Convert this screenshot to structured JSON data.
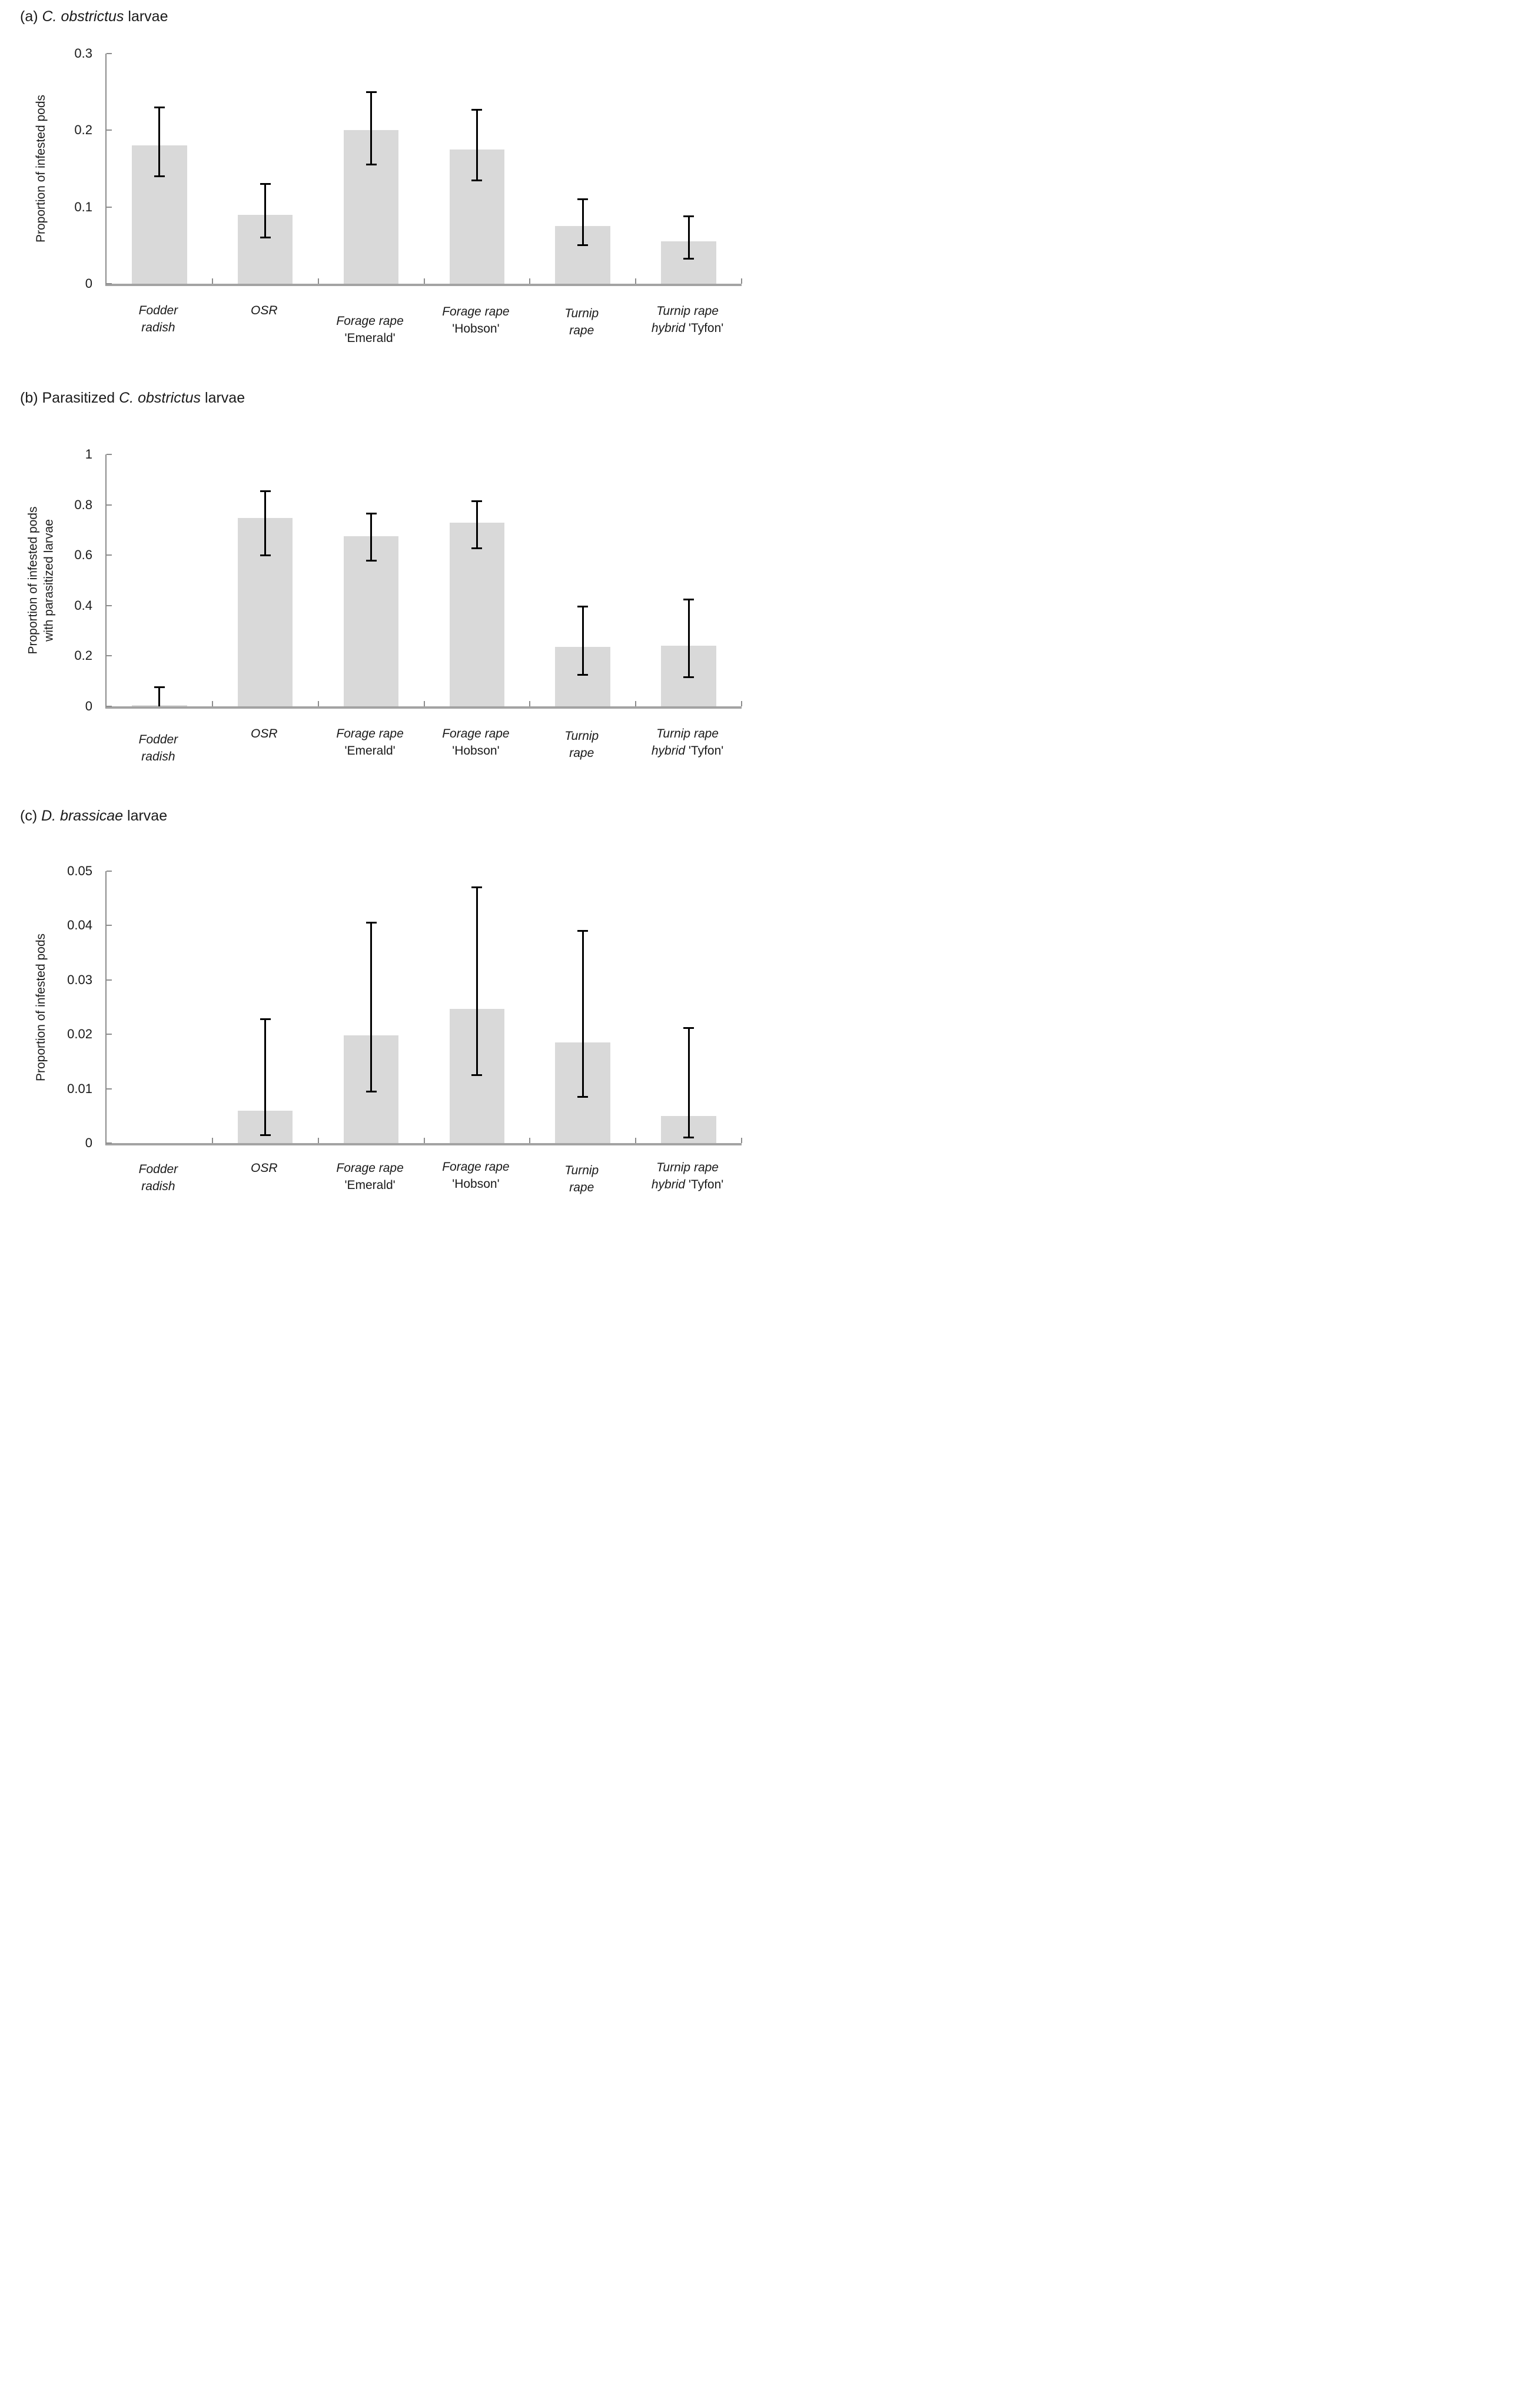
{
  "page": {
    "background": "#ffffff"
  },
  "colors": {
    "bar_fill": "#d9d9d9",
    "error_bar": "#000000",
    "axis_line": "#8c8c8c",
    "baseline": "#a3a3a3",
    "text": "#1a1a1a"
  },
  "chart_data": [
    {
      "type": "bar",
      "panel": "a",
      "title_parts": {
        "prefix": "(a) ",
        "italic": "C. obstrictus",
        "suffix": " larvae"
      },
      "ylabel_lines": [
        "Proportion of infested pods"
      ],
      "ylim": [
        0,
        0.3
      ],
      "grid": false,
      "legend": null,
      "yticks": [
        {
          "v": 0,
          "label": "0"
        },
        {
          "v": 0.1,
          "label": "0.1"
        },
        {
          "v": 0.2,
          "label": "0.2"
        },
        {
          "v": 0.3,
          "label": "0.3"
        }
      ],
      "categories": [
        {
          "lines": [
            [
              {
                "t": "Fodder",
                "i": true
              }
            ],
            [
              {
                "t": "radish",
                "i": true
              }
            ]
          ],
          "dy": 0
        },
        {
          "lines": [
            [
              {
                "t": "OSR",
                "i": true
              }
            ]
          ],
          "dy": 0
        },
        {
          "lines": [
            [
              {
                "t": "Forage rape",
                "i": true
              }
            ],
            [
              {
                "t": "'Emerald'",
                "i": false
              }
            ]
          ],
          "dy": 18
        },
        {
          "lines": [
            [
              {
                "t": "Forage rape",
                "i": true
              }
            ],
            [
              {
                "t": "'Hobson'",
                "i": false
              }
            ]
          ],
          "dy": 2
        },
        {
          "lines": [
            [
              {
                "t": "Turnip",
                "i": true
              }
            ],
            [
              {
                "t": "rape",
                "i": true
              }
            ]
          ],
          "dy": 5
        },
        {
          "lines": [
            [
              {
                "t": "Turnip rape",
                "i": true
              }
            ],
            [
              {
                "t": "hybrid ",
                "i": true
              },
              {
                "t": "'Tyfon'",
                "i": false
              }
            ]
          ],
          "dy": 1
        }
      ],
      "values": [
        0.18,
        0.09,
        0.2,
        0.175,
        0.075,
        0.055
      ],
      "error_low": [
        0.14,
        0.06,
        0.155,
        0.135,
        0.05,
        0.033
      ],
      "error_high": [
        0.23,
        0.13,
        0.25,
        0.227,
        0.11,
        0.088
      ]
    },
    {
      "type": "bar",
      "panel": "b",
      "title_parts": {
        "prefix": "(b) Parasitized ",
        "italic": "C. obstrictus",
        "suffix": " larvae"
      },
      "ylabel_lines": [
        "Proportion of infested pods",
        "with parasitized larvae"
      ],
      "ylim": [
        0,
        1
      ],
      "grid": false,
      "legend": null,
      "yticks": [
        {
          "v": 0,
          "label": "0"
        },
        {
          "v": 0.2,
          "label": "0.2"
        },
        {
          "v": 0.4,
          "label": "0.4"
        },
        {
          "v": 0.6,
          "label": "0.6"
        },
        {
          "v": 0.8,
          "label": "0.8"
        },
        {
          "v": 1,
          "label": "1"
        }
      ],
      "categories": [
        {
          "lines": [
            [
              {
                "t": "Fodder",
                "i": true
              }
            ],
            [
              {
                "t": "radish",
                "i": true
              }
            ]
          ],
          "dy": 10
        },
        {
          "lines": [
            [
              {
                "t": "OSR",
                "i": true
              }
            ]
          ],
          "dy": 0
        },
        {
          "lines": [
            [
              {
                "t": "Forage rape",
                "i": true
              }
            ],
            [
              {
                "t": "'Emerald'",
                "i": false
              }
            ]
          ],
          "dy": 0
        },
        {
          "lines": [
            [
              {
                "t": "Forage rape",
                "i": true
              }
            ],
            [
              {
                "t": "'Hobson'",
                "i": false
              }
            ]
          ],
          "dy": 0
        },
        {
          "lines": [
            [
              {
                "t": "Turnip",
                "i": true
              }
            ],
            [
              {
                "t": "rape",
                "i": true
              }
            ]
          ],
          "dy": 4
        },
        {
          "lines": [
            [
              {
                "t": "Turnip rape",
                "i": true
              }
            ],
            [
              {
                "t": "hybrid ",
                "i": true
              },
              {
                "t": "'Tyfon'",
                "i": false
              }
            ]
          ],
          "dy": 0
        }
      ],
      "values": [
        0.005,
        0.748,
        0.675,
        0.73,
        0.235,
        0.24
      ],
      "error_low": [
        0,
        0.6,
        0.578,
        0.628,
        0.125,
        0.115
      ],
      "error_high": [
        0.077,
        0.855,
        0.765,
        0.815,
        0.395,
        0.425
      ]
    },
    {
      "type": "bar",
      "panel": "c",
      "title_parts": {
        "prefix": "(c) ",
        "italic": "D. brassicae",
        "suffix": " larvae"
      },
      "ylabel_lines": [
        "Proportion of infested pods"
      ],
      "ylim": [
        0,
        0.05
      ],
      "grid": false,
      "legend": null,
      "yticks": [
        {
          "v": 0,
          "label": "0"
        },
        {
          "v": 0.01,
          "label": "0.01"
        },
        {
          "v": 0.02,
          "label": "0.02"
        },
        {
          "v": 0.03,
          "label": "0.03"
        },
        {
          "v": 0.04,
          "label": "0.04"
        },
        {
          "v": 0.05,
          "label": "0.05"
        }
      ],
      "categories": [
        {
          "lines": [
            [
              {
                "t": "Fodder",
                "i": true
              }
            ],
            [
              {
                "t": "radish",
                "i": true
              }
            ]
          ],
          "dy": 4
        },
        {
          "lines": [
            [
              {
                "t": "OSR",
                "i": true
              }
            ]
          ],
          "dy": 2
        },
        {
          "lines": [
            [
              {
                "t": "Forage rape",
                "i": true
              }
            ],
            [
              {
                "t": "'Emerald'",
                "i": false
              }
            ]
          ],
          "dy": 2
        },
        {
          "lines": [
            [
              {
                "t": "Forage rape",
                "i": true
              }
            ],
            [
              {
                "t": "'Hobson'",
                "i": false
              }
            ]
          ],
          "dy": 0
        },
        {
          "lines": [
            [
              {
                "t": "Turnip",
                "i": true
              }
            ],
            [
              {
                "t": "rape",
                "i": true
              }
            ]
          ],
          "dy": 6
        },
        {
          "lines": [
            [
              {
                "t": "Turnip rape",
                "i": true
              }
            ],
            [
              {
                "t": "hybrid ",
                "i": true
              },
              {
                "t": "'Tyfon'",
                "i": false
              }
            ]
          ],
          "dy": 1
        }
      ],
      "values": [
        0,
        0.006,
        0.0198,
        0.0247,
        0.0185,
        0.005
      ],
      "error_low": [
        null,
        0.0015,
        0.0095,
        0.0125,
        0.0085,
        0.001
      ],
      "error_high": [
        null,
        0.0228,
        0.0405,
        0.047,
        0.039,
        0.0212
      ]
    }
  ]
}
